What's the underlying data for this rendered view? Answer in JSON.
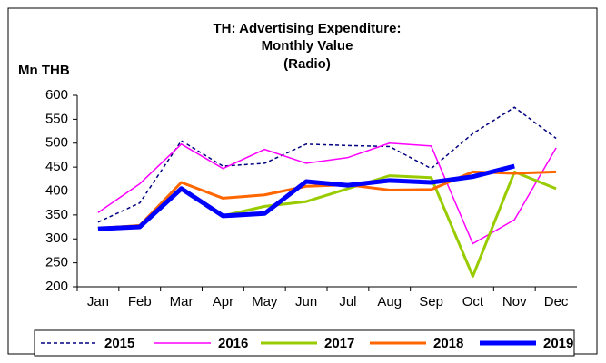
{
  "chart_data": {
    "type": "line",
    "title": [
      "TH: Advertising Expenditure:",
      "Monthly Value",
      "(Radio)"
    ],
    "y_label": "Mn THB",
    "categories": [
      "Jan",
      "Feb",
      "Mar",
      "Apr",
      "May",
      "Jun",
      "Jul",
      "Aug",
      "Sep",
      "Oct",
      "Nov",
      "Dec"
    ],
    "series": [
      {
        "name": "2015",
        "color": "#000080",
        "dashed": true,
        "values": [
          335,
          375,
          505,
          452,
          458,
          498,
          495,
          493,
          447,
          520,
          575,
          510
        ]
      },
      {
        "name": "2016",
        "color": "#ff00ff",
        "values": [
          355,
          415,
          498,
          447,
          487,
          458,
          470,
          500,
          494,
          290,
          340,
          490
        ]
      },
      {
        "name": "2017",
        "color": "#99cc00",
        "values": [
          322,
          328,
          405,
          348,
          368,
          378,
          405,
          432,
          428,
          222,
          440,
          405
        ]
      },
      {
        "name": "2018",
        "color": "#ff6600",
        "values": [
          322,
          328,
          418,
          385,
          392,
          410,
          413,
          402,
          403,
          440,
          437,
          440
        ]
      },
      {
        "name": "2019",
        "color": "#0000ff",
        "values": [
          321,
          325,
          405,
          348,
          353,
          420,
          412,
          422,
          418,
          430,
          452,
          null
        ]
      }
    ],
    "ylim": [
      200,
      600
    ],
    "yticks": [
      200,
      250,
      300,
      350,
      400,
      450,
      500,
      550,
      600
    ],
    "grid": false,
    "legend": "bottom"
  }
}
